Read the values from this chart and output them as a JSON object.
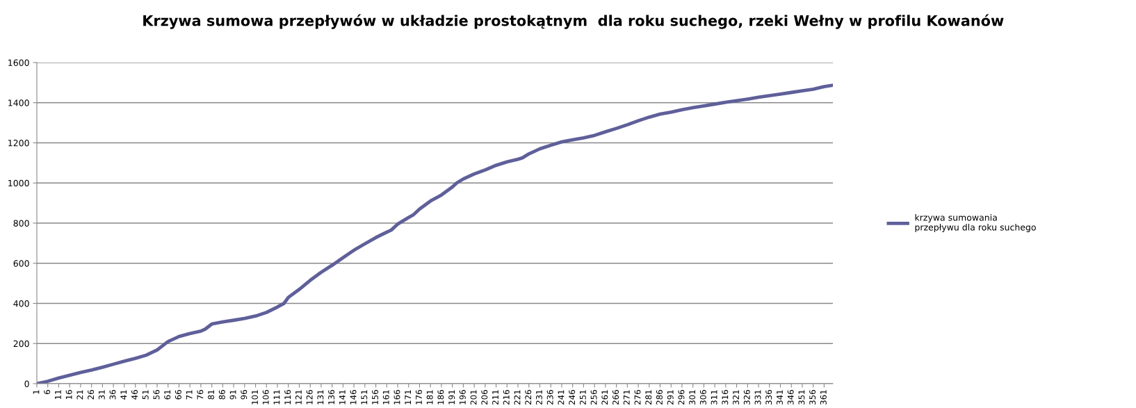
{
  "chart_data": {
    "type": "line",
    "title": "Krzywa sumowa przepływów w układzie prostokątnym  dla roku suchego, rzeki Wełny w profilu Kowanów",
    "x": [
      1,
      6,
      11,
      16,
      21,
      26,
      31,
      36,
      41,
      46,
      51,
      56,
      58,
      61,
      66,
      71,
      76,
      78,
      81,
      86,
      91,
      96,
      101,
      106,
      111,
      114,
      116,
      121,
      126,
      131,
      136,
      141,
      146,
      151,
      156,
      161,
      163,
      166,
      171,
      173,
      176,
      181,
      186,
      191,
      193,
      196,
      201,
      206,
      211,
      216,
      221,
      223,
      226,
      231,
      236,
      241,
      246,
      251,
      256,
      261,
      266,
      271,
      276,
      281,
      286,
      291,
      296,
      301,
      306,
      311,
      316,
      321,
      326,
      331,
      336,
      341,
      346,
      351,
      356,
      361,
      365
    ],
    "series": [
      {
        "name": "krzywa sumowania\nprzepływu dla roku suchego",
        "color": "#5f5f9a",
        "values": [
          0,
          12,
          28,
          42,
          56,
          68,
          82,
          97,
          112,
          126,
          142,
          168,
          185,
          210,
          235,
          250,
          262,
          272,
          297,
          308,
          316,
          325,
          337,
          355,
          382,
          400,
          430,
          470,
          515,
          555,
          590,
          628,
          665,
          697,
          728,
          755,
          765,
          795,
          828,
          840,
          870,
          910,
          940,
          980,
          1000,
          1020,
          1045,
          1065,
          1088,
          1105,
          1118,
          1125,
          1145,
          1170,
          1188,
          1205,
          1215,
          1225,
          1237,
          1255,
          1272,
          1290,
          1310,
          1328,
          1343,
          1353,
          1365,
          1375,
          1384,
          1393,
          1402,
          1410,
          1418,
          1427,
          1435,
          1443,
          1451,
          1459,
          1467,
          1480,
          1487
        ]
      }
    ],
    "xlim": [
      1,
      365
    ],
    "xticks": [
      1,
      6,
      11,
      16,
      21,
      26,
      31,
      36,
      41,
      46,
      51,
      56,
      61,
      66,
      71,
      76,
      81,
      86,
      91,
      96,
      101,
      106,
      111,
      116,
      121,
      126,
      131,
      136,
      141,
      146,
      151,
      156,
      161,
      166,
      171,
      176,
      181,
      186,
      191,
      196,
      201,
      206,
      211,
      216,
      221,
      226,
      231,
      236,
      241,
      246,
      251,
      256,
      261,
      266,
      271,
      276,
      281,
      286,
      291,
      296,
      301,
      306,
      311,
      316,
      321,
      326,
      331,
      336,
      341,
      346,
      351,
      356,
      361
    ],
    "ylim": [
      0,
      1600
    ],
    "yticks": [
      0,
      200,
      400,
      600,
      800,
      1000,
      1200,
      1400,
      1600
    ],
    "grid": "y",
    "legend": "right",
    "marker": "none",
    "line_style": "solid"
  }
}
